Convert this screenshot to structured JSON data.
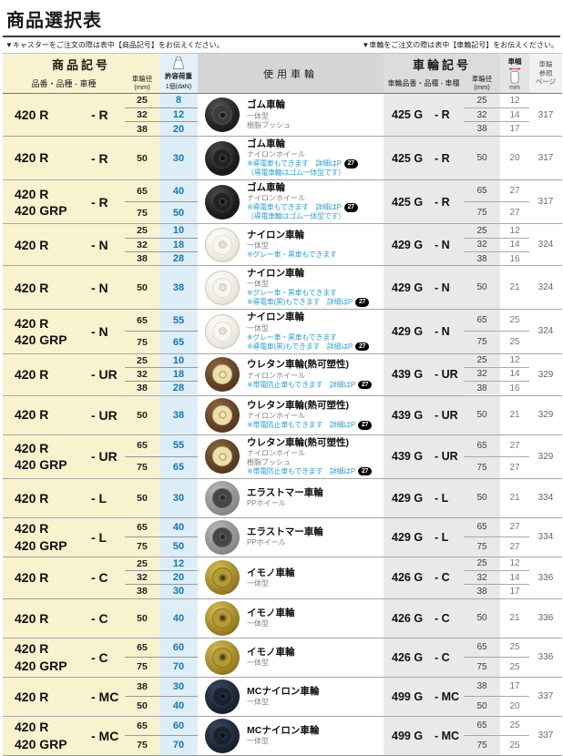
{
  "page": {
    "title": "商品選択表",
    "note_left": "▼キャスターをご注文の際は表中【商品記号】をお伝えください。",
    "note_right": "▼車輪をご注文の際は表中【車輪記号】をお伝えください。"
  },
  "header": {
    "product_group": "商品記号",
    "product_sub": "品番・品種 - 車種",
    "dia_label": "車輪径",
    "dia_unit": "(mm)",
    "load_label": "許容荷重",
    "load_unit": "1個(daN)",
    "use_wheel": "使用車輪",
    "wheel_group": "車輪記号",
    "wheel_sub": "車輪品番・品種 - 車種",
    "wheel_dia_label": "車輪径",
    "wheel_dia_unit": "(mm)",
    "width_label": "車幅",
    "width_unit": "mm",
    "ref_line1": "車輪",
    "ref_line2": "参照",
    "ref_line3": "ページ"
  },
  "colors": {
    "cream": "#f8f2cf",
    "load_blue_bg": "#ddeef8",
    "load_blue_text": "#1577b0",
    "note_cyan": "#35a2cd",
    "gray_col": "#e9e9e9",
    "badge_black": "#000000"
  },
  "rows": [
    {
      "codes": [
        "420 R"
      ],
      "type": "- R",
      "sizes": [
        {
          "dia": "25",
          "load": "8"
        },
        {
          "dia": "32",
          "load": "12"
        },
        {
          "dia": "38",
          "load": "20"
        }
      ],
      "wheel": {
        "style": "rubber-bush",
        "name": "ゴム車輪",
        "lines": [
          {
            "kind": "sub",
            "text": "一体型"
          },
          {
            "kind": "sub",
            "text": "樹脂ブッシュ"
          }
        ]
      },
      "wheel_code": "425 G",
      "wheel_type": "- R",
      "wheel_sizes": [
        {
          "dia": "25",
          "width": "12"
        },
        {
          "dia": "32",
          "width": "14"
        },
        {
          "dia": "38",
          "width": "17"
        }
      ],
      "ref_page": "317"
    },
    {
      "codes": [
        "420 R"
      ],
      "type": "- R",
      "sizes": [
        {
          "dia": "50",
          "load": "30"
        }
      ],
      "wheel": {
        "style": "rubber",
        "name": "ゴム車輪",
        "lines": [
          {
            "kind": "sub",
            "text": "ナイロンホイール"
          },
          {
            "kind": "note",
            "text": "※導電車もできます　詳細はP",
            "page": "27"
          },
          {
            "kind": "note",
            "text": "（導電車輪はゴム一体型です）"
          }
        ]
      },
      "wheel_code": "425 G",
      "wheel_type": "- R",
      "wheel_sizes": [
        {
          "dia": "50",
          "width": "20"
        }
      ],
      "ref_page": "317"
    },
    {
      "codes": [
        "420 R",
        "420 GRP"
      ],
      "type": "- R",
      "sizes": [
        {
          "dia": "65",
          "load": "40"
        },
        {
          "dia": "75",
          "load": "50"
        }
      ],
      "wheel": {
        "style": "rubber",
        "name": "ゴム車輪",
        "lines": [
          {
            "kind": "sub",
            "text": "ナイロンホイール"
          },
          {
            "kind": "note",
            "text": "※導電車もできます　詳細はP",
            "page": "27"
          },
          {
            "kind": "note",
            "text": "（導電車輪はゴム一体型です）"
          }
        ]
      },
      "wheel_code": "425 G",
      "wheel_type": "- R",
      "wheel_sizes": [
        {
          "dia": "65",
          "width": "27"
        },
        {
          "dia": "75",
          "width": "27"
        }
      ],
      "ref_page": "317"
    },
    {
      "codes": [
        "420 R"
      ],
      "type": "- N",
      "sizes": [
        {
          "dia": "25",
          "load": "10"
        },
        {
          "dia": "32",
          "load": "18"
        },
        {
          "dia": "38",
          "load": "28"
        }
      ],
      "wheel": {
        "style": "nylon",
        "name": "ナイロン車輪",
        "lines": [
          {
            "kind": "sub",
            "text": "一体型"
          },
          {
            "kind": "note",
            "text": "※グレー車・黒車もできます"
          }
        ]
      },
      "wheel_code": "429 G",
      "wheel_type": "- N",
      "wheel_sizes": [
        {
          "dia": "25",
          "width": "12"
        },
        {
          "dia": "32",
          "width": "14"
        },
        {
          "dia": "38",
          "width": "16"
        }
      ],
      "ref_page": "324"
    },
    {
      "codes": [
        "420 R"
      ],
      "type": "- N",
      "sizes": [
        {
          "dia": "50",
          "load": "38"
        }
      ],
      "wheel": {
        "style": "nylon",
        "name": "ナイロン車輪",
        "lines": [
          {
            "kind": "sub",
            "text": "一体型"
          },
          {
            "kind": "note",
            "text": "※グレー車・黒車もできます"
          },
          {
            "kind": "note",
            "text": "※導電車(黒)もできます　詳細はP",
            "page": "27"
          }
        ]
      },
      "wheel_code": "429 G",
      "wheel_type": "- N",
      "wheel_sizes": [
        {
          "dia": "50",
          "width": "21"
        }
      ],
      "ref_page": "324"
    },
    {
      "codes": [
        "420 R",
        "420 GRP"
      ],
      "type": "- N",
      "sizes": [
        {
          "dia": "65",
          "load": "55"
        },
        {
          "dia": "75",
          "load": "65"
        }
      ],
      "wheel": {
        "style": "nylon",
        "name": "ナイロン車輪",
        "lines": [
          {
            "kind": "sub",
            "text": "一体型"
          },
          {
            "kind": "note",
            "text": "※グレー車・黒車もできます"
          },
          {
            "kind": "note",
            "text": "※導電車(黒)もできます　詳細はP",
            "page": "27"
          }
        ]
      },
      "wheel_code": "429 G",
      "wheel_type": "- N",
      "wheel_sizes": [
        {
          "dia": "65",
          "width": "25"
        },
        {
          "dia": "75",
          "width": "25"
        }
      ],
      "ref_page": "324"
    },
    {
      "codes": [
        "420 R"
      ],
      "type": "- UR",
      "sizes": [
        {
          "dia": "25",
          "load": "10"
        },
        {
          "dia": "32",
          "load": "18"
        },
        {
          "dia": "38",
          "load": "28"
        }
      ],
      "wheel": {
        "style": "urethane",
        "name": "ウレタン車輪(熱可塑性)",
        "lines": [
          {
            "kind": "sub",
            "text": "ナイロンホイール"
          },
          {
            "kind": "note",
            "text": "※帯電防止車もできます　詳細はP",
            "page": "27"
          }
        ]
      },
      "wheel_code": "439 G",
      "wheel_type": "- UR",
      "wheel_sizes": [
        {
          "dia": "25",
          "width": "12"
        },
        {
          "dia": "32",
          "width": "14"
        },
        {
          "dia": "38",
          "width": "16"
        }
      ],
      "ref_page": "329"
    },
    {
      "codes": [
        "420 R"
      ],
      "type": "- UR",
      "sizes": [
        {
          "dia": "50",
          "load": "38"
        }
      ],
      "wheel": {
        "style": "urethane",
        "name": "ウレタン車輪(熱可塑性)",
        "lines": [
          {
            "kind": "sub",
            "text": "ナイロンホイール"
          },
          {
            "kind": "note",
            "text": "※帯電防止車もできます　詳細はP",
            "page": "27"
          }
        ]
      },
      "wheel_code": "439 G",
      "wheel_type": "- UR",
      "wheel_sizes": [
        {
          "dia": "50",
          "width": "21"
        }
      ],
      "ref_page": "329"
    },
    {
      "codes": [
        "420 R",
        "420 GRP"
      ],
      "type": "- UR",
      "sizes": [
        {
          "dia": "65",
          "load": "55"
        },
        {
          "dia": "75",
          "load": "65"
        }
      ],
      "wheel": {
        "style": "urethane",
        "name": "ウレタン車輪(熱可塑性)",
        "lines": [
          {
            "kind": "sub",
            "text": "ナイロンホイール"
          },
          {
            "kind": "sub",
            "text": "樹脂ブッシュ"
          },
          {
            "kind": "note",
            "text": "※帯電防止車もできます　詳細はP",
            "page": "27"
          }
        ]
      },
      "wheel_code": "439 G",
      "wheel_type": "- UR",
      "wheel_sizes": [
        {
          "dia": "65",
          "width": "27"
        },
        {
          "dia": "75",
          "width": "27"
        }
      ],
      "ref_page": "329"
    },
    {
      "codes": [
        "420 R"
      ],
      "type": "- L",
      "sizes": [
        {
          "dia": "50",
          "load": "30"
        }
      ],
      "wheel": {
        "style": "elastomer",
        "name": "エラストマー車輪",
        "lines": [
          {
            "kind": "sub",
            "text": "PPホイール"
          }
        ]
      },
      "wheel_code": "429 G",
      "wheel_type": "- L",
      "wheel_sizes": [
        {
          "dia": "50",
          "width": "21"
        }
      ],
      "ref_page": "334"
    },
    {
      "codes": [
        "420 R",
        "420 GRP"
      ],
      "type": "- L",
      "sizes": [
        {
          "dia": "65",
          "load": "40"
        },
        {
          "dia": "75",
          "load": "50"
        }
      ],
      "wheel": {
        "style": "elastomer",
        "name": "エラストマー車輪",
        "lines": [
          {
            "kind": "sub",
            "text": "PPホイール"
          }
        ]
      },
      "wheel_code": "429 G",
      "wheel_type": "- L",
      "wheel_sizes": [
        {
          "dia": "65",
          "width": "27"
        },
        {
          "dia": "75",
          "width": "27"
        }
      ],
      "ref_page": "334"
    },
    {
      "codes": [
        "420 R"
      ],
      "type": "- C",
      "sizes": [
        {
          "dia": "25",
          "load": "12"
        },
        {
          "dia": "32",
          "load": "20"
        },
        {
          "dia": "38",
          "load": "30"
        }
      ],
      "wheel": {
        "style": "imono",
        "name": "イモノ車輪",
        "lines": [
          {
            "kind": "sub",
            "text": "一体型"
          }
        ]
      },
      "wheel_code": "426 G",
      "wheel_type": "- C",
      "wheel_sizes": [
        {
          "dia": "25",
          "width": "12"
        },
        {
          "dia": "32",
          "width": "14"
        },
        {
          "dia": "38",
          "width": "17"
        }
      ],
      "ref_page": "336"
    },
    {
      "codes": [
        "420 R"
      ],
      "type": "- C",
      "sizes": [
        {
          "dia": "50",
          "load": "40"
        }
      ],
      "wheel": {
        "style": "imono",
        "name": "イモノ車輪",
        "lines": [
          {
            "kind": "sub",
            "text": "一体型"
          }
        ]
      },
      "wheel_code": "426 G",
      "wheel_type": "- C",
      "wheel_sizes": [
        {
          "dia": "50",
          "width": "21"
        }
      ],
      "ref_page": "336"
    },
    {
      "codes": [
        "420 R",
        "420 GRP"
      ],
      "type": "- C",
      "sizes": [
        {
          "dia": "65",
          "load": "60"
        },
        {
          "dia": "75",
          "load": "70"
        }
      ],
      "wheel": {
        "style": "imono",
        "name": "イモノ車輪",
        "lines": [
          {
            "kind": "sub",
            "text": "一体型"
          }
        ]
      },
      "wheel_code": "426 G",
      "wheel_type": "- C",
      "wheel_sizes": [
        {
          "dia": "65",
          "width": "25"
        },
        {
          "dia": "75",
          "width": "25"
        }
      ],
      "ref_page": "336"
    },
    {
      "codes": [
        "420 R"
      ],
      "type": "- MC",
      "sizes": [
        {
          "dia": "38",
          "load": "30"
        },
        {
          "dia": "50",
          "load": "40"
        }
      ],
      "wheel": {
        "style": "mc",
        "name": "MCナイロン車輪",
        "lines": [
          {
            "kind": "sub",
            "text": "一体型"
          }
        ]
      },
      "wheel_code": "499 G",
      "wheel_type": "- MC",
      "wheel_sizes": [
        {
          "dia": "38",
          "width": "17"
        },
        {
          "dia": "50",
          "width": "20"
        }
      ],
      "ref_page": "337"
    },
    {
      "codes": [
        "420 R",
        "420 GRP"
      ],
      "type": "- MC",
      "sizes": [
        {
          "dia": "65",
          "load": "60"
        },
        {
          "dia": "75",
          "load": "70"
        }
      ],
      "wheel": {
        "style": "mc",
        "name": "MCナイロン車輪",
        "lines": [
          {
            "kind": "sub",
            "text": "一体型"
          }
        ]
      },
      "wheel_code": "499 G",
      "wheel_type": "- MC",
      "wheel_sizes": [
        {
          "dia": "65",
          "width": "25"
        },
        {
          "dia": "75",
          "width": "25"
        }
      ],
      "ref_page": "337"
    }
  ]
}
